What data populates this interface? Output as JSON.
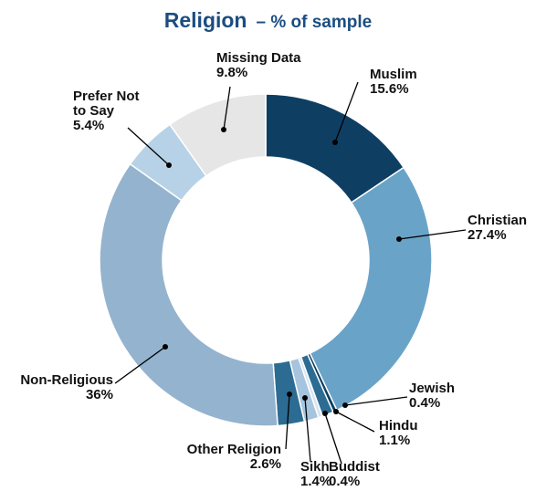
{
  "title": "Religion",
  "subtitle": "– % of sample",
  "chart_data": {
    "type": "pie",
    "donut": true,
    "title": "Religion",
    "subtitle": "– % of sample",
    "slices": [
      {
        "label": "Muslim",
        "value": 15.6,
        "display": "15.6%",
        "color": "#0e3f63"
      },
      {
        "label": "Christian",
        "value": 27.4,
        "display": "27.4%",
        "color": "#6aa3c8"
      },
      {
        "label": "Jewish",
        "value": 0.4,
        "display": "0.4%",
        "color": "#0e3f63"
      },
      {
        "label": "Hindu",
        "value": 1.1,
        "display": "1.1%",
        "color": "#2c6c93"
      },
      {
        "label": "Buddist",
        "value": 0.4,
        "display": "0.4%",
        "color": "#d9e4ee"
      },
      {
        "label": "Sikh",
        "value": 1.4,
        "display": "1.4%",
        "color": "#a6c4de"
      },
      {
        "label": "Other Religion",
        "value": 2.6,
        "display": "2.6%",
        "color": "#2c6c93"
      },
      {
        "label": "Non-Religious",
        "value": 36,
        "display": "36%",
        "color": "#94b3ce"
      },
      {
        "label": "Prefer Not to Say",
        "value": 5.4,
        "display": "5.4%",
        "color": "#b7d2e7"
      },
      {
        "label": "Missing Data",
        "value": 9.8,
        "display": "9.8%",
        "color": "#e6e6e6"
      }
    ]
  }
}
